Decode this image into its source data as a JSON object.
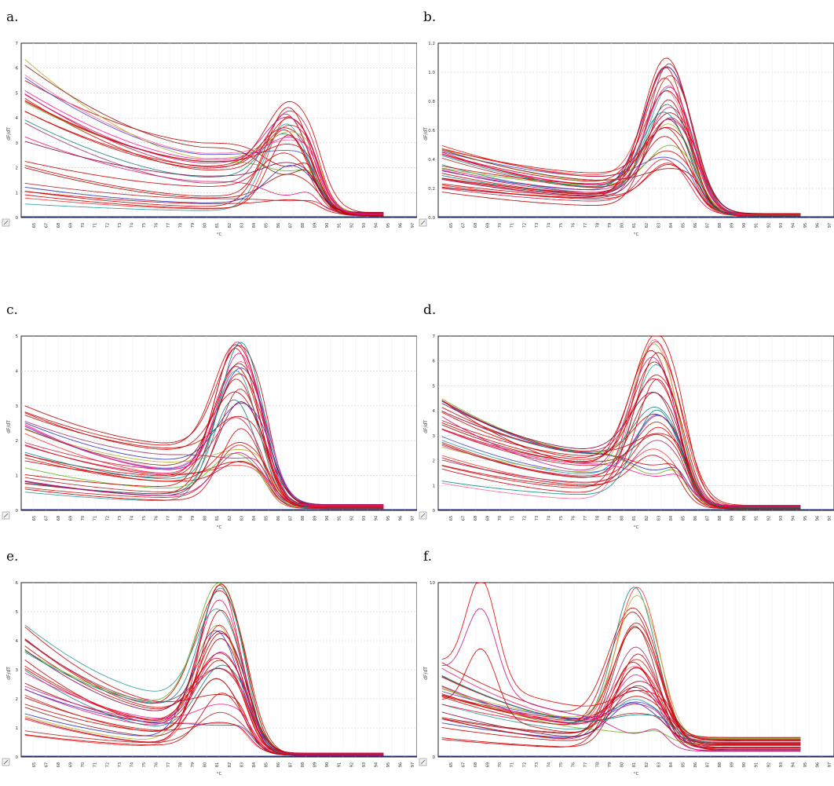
{
  "figure": {
    "panels": [
      {
        "letter": "a.",
        "ylabel": "dF/dT",
        "xlabel": "°C",
        "ymax": 7,
        "yticks": [
          "0",
          "1",
          "2",
          "3",
          "4",
          "5",
          "6",
          "7"
        ],
        "peak_x": 86.5,
        "n_curves": 28
      },
      {
        "letter": "b.",
        "ylabel": "dF/dT",
        "xlabel": "°C",
        "ymax": 1.2,
        "yticks": [
          "0.0",
          "0.2",
          "0.4",
          "0.6",
          "0.8",
          "1.0",
          "1.2"
        ],
        "peak_x": 83.5,
        "n_curves": 30
      },
      {
        "letter": "c.",
        "ylabel": "dF/dT",
        "xlabel": "°C",
        "ymax": 5,
        "yticks": [
          "0",
          "1",
          "2",
          "3",
          "4",
          "5"
        ],
        "peak_x": 82.5,
        "n_curves": 30
      },
      {
        "letter": "d.",
        "ylabel": "dF/dT",
        "xlabel": "°C",
        "ymax": 7,
        "yticks": [
          "0",
          "1",
          "2",
          "3",
          "4",
          "5",
          "6",
          "7"
        ],
        "peak_x": 82.5,
        "n_curves": 30
      },
      {
        "letter": "e.",
        "ylabel": "dF/dT",
        "xlabel": "°C",
        "ymax": 6,
        "yticks": [
          "0",
          "1",
          "2",
          "3",
          "4",
          "5",
          "6"
        ],
        "peak_x": 81.0,
        "n_curves": 30
      },
      {
        "letter": "f.",
        "ylabel": "dF/dT",
        "xlabel": "°C",
        "ymax": 10,
        "yticks": [
          "0",
          "10"
        ],
        "peak_x": 81.0,
        "n_curves": 30
      }
    ],
    "xticks": [
      "65",
      "67",
      "68",
      "69",
      "70",
      "71",
      "72",
      "73",
      "74",
      "75",
      "76",
      "77",
      "78",
      "79",
      "80",
      "81",
      "82",
      "83",
      "84",
      "85",
      "86",
      "87",
      "88",
      "89",
      "90",
      "91",
      "92",
      "93",
      "94",
      "95",
      "96",
      "97"
    ]
  },
  "chart_data": [
    {
      "type": "line",
      "panel": "a",
      "xlabel": "°C",
      "ylabel": "dF/dT",
      "xlim": [
        65,
        97
      ],
      "ylim": [
        0,
        7
      ],
      "series_summary": "melt curves: starting values 0.3–6.5 at 65°C, decreasing to a plateau near 76–82°C, single peak at ~86.5°C (peak 0.3–5.1), falling to ~0.1 by 90°C, curves end at 94.5°C"
    },
    {
      "type": "line",
      "panel": "b",
      "xlabel": "°C",
      "ylabel": "dF/dT",
      "xlim": [
        65,
        97
      ],
      "ylim": [
        0,
        1.2
      ],
      "series_summary": "melt curves: starting values 0.15–0.55, plateau ~0.2, peak at ~83.5°C (0.3–1.1), near 0.02 after 87°C"
    },
    {
      "type": "line",
      "panel": "c",
      "xlabel": "°C",
      "ylabel": "dF/dT",
      "xlim": [
        65,
        97
      ],
      "ylim": [
        0,
        5
      ],
      "series_summary": "melt curves: starting values 0.5–3.4, plateau 0.3–2.0 around 75–79°C, peak at ~82.5°C (1.0–4.9), near 0.1 after 86°C"
    },
    {
      "type": "line",
      "panel": "d",
      "xlabel": "°C",
      "ylabel": "dF/dT",
      "xlim": [
        65,
        97
      ],
      "ylim": [
        0,
        7
      ],
      "series_summary": "melt curves: starting values 0.9–4.6, plateau 0.8–2.5, peak at ~82.5°C (1.0–7.1), near 0.15 after 86°C"
    },
    {
      "type": "line",
      "panel": "e",
      "xlabel": "°C",
      "ylabel": "dF/dT",
      "xlim": [
        65,
        97
      ],
      "ylim": [
        0,
        6
      ],
      "series_summary": "melt curves: starting values 0.3–4.7, dip near 76.5°C, peak at ~81°C (0.5–6.1), near 0.1 after 84.5°C"
    },
    {
      "type": "line",
      "panel": "f",
      "xlabel": "°C",
      "ylabel": "dF/dT",
      "xlim": [
        65,
        97
      ],
      "ylim": [
        0,
        10
      ],
      "series_summary": "melt curves: starting values 0.8–6.0, some with an early hump near 68.5°C up to 8.2, peak at ~81°C (1.0–9.9), plateau 0.1–1.5 after 85°C"
    }
  ],
  "palette": {
    "primary": "#cc0000",
    "others": [
      "#e60000",
      "#b30000",
      "#ff3333",
      "#990000",
      "#ff6699",
      "#e61a6b",
      "#cc3366",
      "#2e2ebf",
      "#4040d9",
      "#0a0a80",
      "#1a8080",
      "#2b9999",
      "#26a626",
      "#66b31a",
      "#b3b333",
      "#c2a366",
      "#993366",
      "#800040",
      "#ff4d94",
      "#d11a1a",
      "#8b1a1a",
      "#ff5c5c",
      "#b22222",
      "#dc143c",
      "#6a0dad",
      "#ff1493",
      "#c71585",
      "#228b22",
      "#008b8b"
    ]
  }
}
